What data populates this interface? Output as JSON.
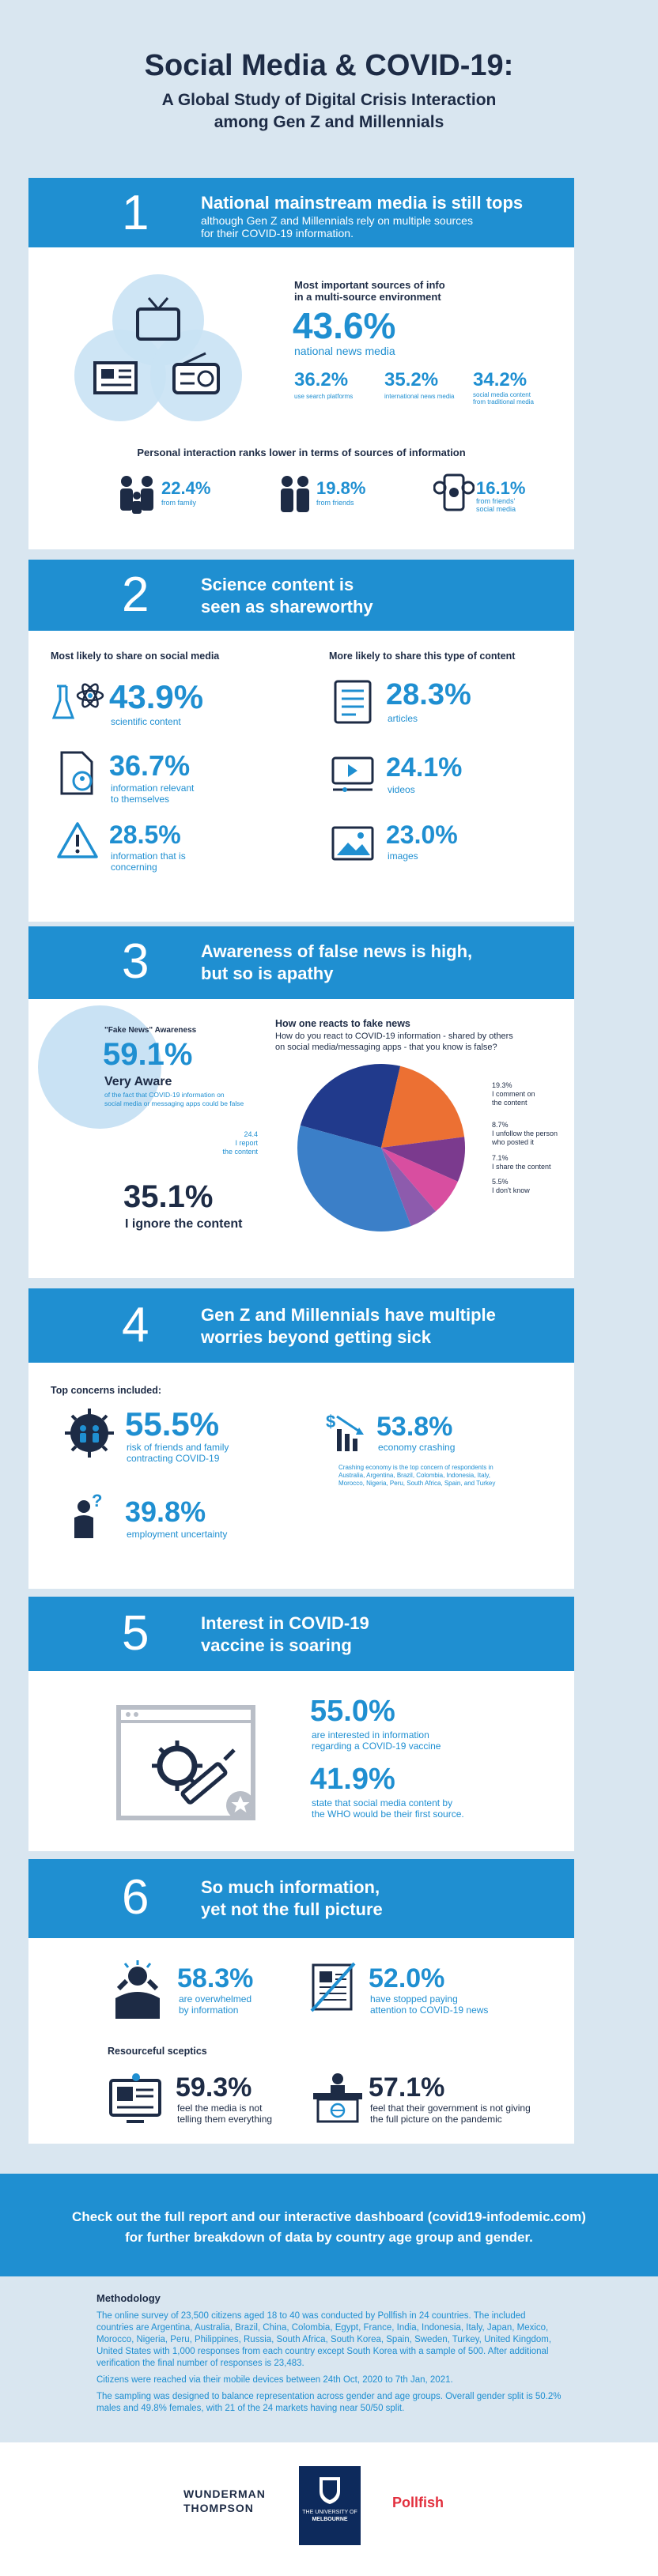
{
  "header": {
    "title": "Social Media & COVID-19:",
    "subtitle_line1": "A Global Study of Digital Crisis Interaction",
    "subtitle_line2": "among Gen Z and Millennials"
  },
  "s1": {
    "number": "1",
    "title": "National mainstream media is still tops",
    "sub_line1": "although Gen Z and Millennials rely on multiple sources",
    "sub_line2": "for their COVID-19 information.",
    "head_line1": "Most important sources of info",
    "head_line2": "in a multi-source environment",
    "main_pct": "43.6%",
    "main_label": "national news media",
    "stats": [
      {
        "pct": "36.2%",
        "label": "use search platforms"
      },
      {
        "pct": "35.2%",
        "label": "international news media"
      },
      {
        "pct": "34.2%",
        "label_line1": "social media content",
        "label_line2": "from traditional media"
      }
    ],
    "personal_head": "Personal interaction ranks lower in terms of sources of information",
    "personal": [
      {
        "pct": "22.4%",
        "label": "from family"
      },
      {
        "pct": "19.8%",
        "label": "from friends"
      },
      {
        "pct": "16.1%",
        "label_line1": "from friends'",
        "label_line2": "social media"
      }
    ]
  },
  "s2": {
    "number": "2",
    "title_line1": "Science content is",
    "title_line2": "seen as shareworthy",
    "left_head": "Most likely to share on social media",
    "right_head": "More likely to share this type of content",
    "left": [
      {
        "pct": "43.9%",
        "label": "scientific content"
      },
      {
        "pct": "36.7%",
        "label_line1": "information relevant",
        "label_line2": "to themselves"
      },
      {
        "pct": "28.5%",
        "label_line1": "information that is",
        "label_line2": "concerning"
      }
    ],
    "right": [
      {
        "pct": "28.3%",
        "label": "articles"
      },
      {
        "pct": "24.1%",
        "label": "videos"
      },
      {
        "pct": "23.0%",
        "label": "images"
      }
    ]
  },
  "s3": {
    "number": "3",
    "title_line1": "Awareness of false news is high,",
    "title_line2": "but so is apathy",
    "aware_head": "\"Fake News\" Awareness",
    "aware_pct": "59.1%",
    "aware_label": "Very Aware",
    "aware_note_line1": "of the fact that COVID-19 information on",
    "aware_note_line2": "social media or messaging apps could be false",
    "react_head": "How one reacts to fake news",
    "react_q_line1": "How do you react to COVID-19 information - shared by others",
    "react_q_line2": "on social media/messaging apps - that you know is false?",
    "ignore_pct": "35.1%",
    "ignore_label": "I ignore the content",
    "left_label_pct": "24.4",
    "left_label_line1": "I report",
    "left_label_line2": "the content"
  },
  "chart_data": {
    "type": "pie",
    "title": "How one reacts to fake news",
    "categories": [
      "I ignore the content",
      "I report the content",
      "I comment on the content",
      "I unfollow the person who posted it",
      "I share the content",
      "I don't know"
    ],
    "values": [
      35.1,
      24.4,
      19.3,
      8.7,
      7.1,
      5.5
    ],
    "colors": [
      "#3b7fc8",
      "#213a8c",
      "#ec7033",
      "#7b3a8e",
      "#d84ea0",
      "#8d5bad"
    ],
    "labels_right": [
      {
        "pct": "19.3%",
        "line1": "I comment on",
        "line2": "the content"
      },
      {
        "pct": "8.7%",
        "line1": "I unfollow the person",
        "line2": "who posted it"
      },
      {
        "pct": "7.1%",
        "line1": "I share the content",
        "line2": ""
      },
      {
        "pct": "5.5%",
        "line1": "I don't know",
        "line2": ""
      }
    ]
  },
  "s4": {
    "number": "4",
    "title_line1": "Gen Z and Millennials have multiple",
    "title_line2": "worries beyond getting sick",
    "head": "Top concerns included:",
    "c1_pct": "55.5%",
    "c1_line1": "risk of friends and family",
    "c1_line2": "contracting COVID-19",
    "c2_pct": "53.8%",
    "c2_label": "economy crashing",
    "c2_note_line1": "Crashing economy is the top concern of respondents in",
    "c2_note_line2": "Australia, Argentina, Brazil, Colombia, Indonesia, Italy,",
    "c2_note_line3": "Morocco, Nigeria, Peru, South Africa, Spain, and Turkey",
    "c3_pct": "39.8%",
    "c3_label": "employment uncertainty"
  },
  "s5": {
    "number": "5",
    "title_line1": "Interest in COVID-19",
    "title_line2": "vaccine is soaring",
    "a_pct": "55.0%",
    "a_line1": "are interested in information",
    "a_line2": "regarding a COVID-19 vaccine",
    "b_pct": "41.9%",
    "b_line1": "state that social media content by",
    "b_line2": "the WHO would be their first source."
  },
  "s6": {
    "number": "6",
    "title_line1": "So much information,",
    "title_line2": "yet not the full picture",
    "a_pct": "58.3%",
    "a_line1": "are overwhelmed",
    "a_line2": "by information",
    "b_pct": "52.0%",
    "b_line1": "have stopped paying",
    "b_line2": "attention to COVID-19 news",
    "res_head": "Resourceful sceptics",
    "c_pct": "59.3%",
    "c_line1": "feel the media is not",
    "c_line2": "telling them everything",
    "d_pct": "57.1%",
    "d_line1": "feel that their government is not giving",
    "d_line2": "the full picture on the pandemic"
  },
  "cta": {
    "line1": "Check out the full report and our interactive dashboard (covid19-infodemic.com)",
    "line2": "for further breakdown of data by country age group and gender."
  },
  "methodology": {
    "head": "Methodology",
    "p1": "The online survey of 23,500 citizens aged 18 to 40 was conducted by Pollfish in 24 countries. The included countries are Argentina, Australia, Brazil, China, Colombia, Egypt, France, India, Indonesia, Italy, Japan, Mexico, Morocco, Nigeria, Peru, Philippines, Russia, South Africa, South Korea, Spain, Sweden, Turkey, United Kingdom, United States with 1,000 responses from each country except South Korea with a sample of 500. After additional verification the final number of responses is 23,483.",
    "p2": "Citizens were reached via their mobile devices between 24th Oct, 2020 to 7th Jan, 2021.",
    "p3": "The sampling was designed to balance representation across gender and age groups. Overall gender split is 50.2% males and 49.8% females, with 21 of the 24 markets having near 50/50 split."
  },
  "logos": {
    "wt_line1": "WUNDERMAN",
    "wt_line2": "THOMPSON",
    "um_line1": "THE UNIVERSITY OF",
    "um_line2": "MELBOURNE",
    "pollfish": "Pollfish"
  }
}
